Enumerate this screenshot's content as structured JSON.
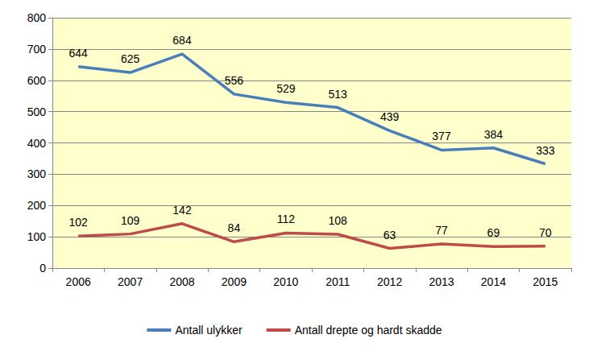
{
  "chart_data": {
    "type": "line",
    "categories": [
      "2006",
      "2007",
      "2008",
      "2009",
      "2010",
      "2011",
      "2012",
      "2013",
      "2014",
      "2015"
    ],
    "series": [
      {
        "name": "Antall ulykker",
        "color": "#4a7ebb",
        "values": [
          644,
          625,
          684,
          556,
          529,
          513,
          439,
          377,
          384,
          333
        ]
      },
      {
        "name": "Antall drepte og hardt skadde",
        "color": "#be4b48",
        "values": [
          102,
          109,
          142,
          84,
          112,
          108,
          63,
          77,
          69,
          70
        ]
      }
    ],
    "ylim": [
      0,
      800
    ],
    "yticks": [
      0,
      100,
      200,
      300,
      400,
      500,
      600,
      700,
      800
    ],
    "grid": true,
    "legend": "bottom",
    "data_labels": true
  }
}
